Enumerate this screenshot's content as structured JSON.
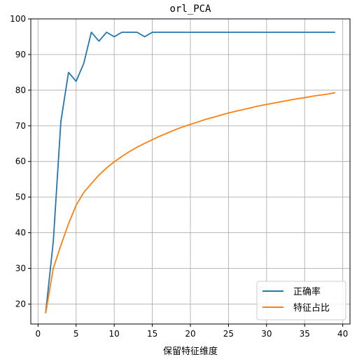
{
  "chart_data": {
    "type": "line",
    "title": "orl_PCA",
    "xlabel": "保留特征维度",
    "ylabel": "",
    "xlim": [
      -0.95,
      40.95
    ],
    "ylim": [
      14.4,
      100.0
    ],
    "xticks": [
      0,
      5,
      10,
      15,
      20,
      25,
      30,
      35,
      40
    ],
    "yticks": [
      20,
      30,
      40,
      50,
      60,
      70,
      80,
      90,
      100
    ],
    "grid": true,
    "legend_position": "lower-right",
    "x": [
      1,
      2,
      3,
      4,
      5,
      6,
      7,
      8,
      9,
      10,
      11,
      12,
      13,
      14,
      15,
      16,
      17,
      18,
      19,
      20,
      21,
      22,
      23,
      24,
      25,
      26,
      27,
      28,
      29,
      30,
      31,
      32,
      33,
      34,
      35,
      36,
      37,
      38,
      39
    ],
    "series": [
      {
        "name": "正确率",
        "color": "#1f77b4",
        "values": [
          17.5,
          37.5,
          71.25,
          85.0,
          82.5,
          87.5,
          96.25,
          93.75,
          96.25,
          95.0,
          96.25,
          96.25,
          96.25,
          95.0,
          96.25,
          96.25,
          96.25,
          96.25,
          96.25,
          96.25,
          96.25,
          96.25,
          96.25,
          96.25,
          96.25,
          96.25,
          96.25,
          96.25,
          96.25,
          96.25,
          96.25,
          96.25,
          96.25,
          96.25,
          96.25,
          96.25,
          96.25,
          96.25,
          96.25
        ]
      },
      {
        "name": "特征占比",
        "color": "#ff7f0e",
        "values": [
          17.4,
          30.0,
          36.5,
          42.5,
          47.7,
          51.3,
          53.8,
          56.2,
          58.2,
          59.9,
          61.4,
          62.8,
          64.0,
          65.1,
          66.1,
          67.1,
          68.0,
          68.9,
          69.7,
          70.4,
          71.1,
          71.8,
          72.4,
          73.0,
          73.6,
          74.1,
          74.6,
          75.1,
          75.6,
          76.0,
          76.4,
          76.8,
          77.2,
          77.6,
          77.9,
          78.3,
          78.6,
          78.9,
          79.3
        ]
      }
    ]
  }
}
